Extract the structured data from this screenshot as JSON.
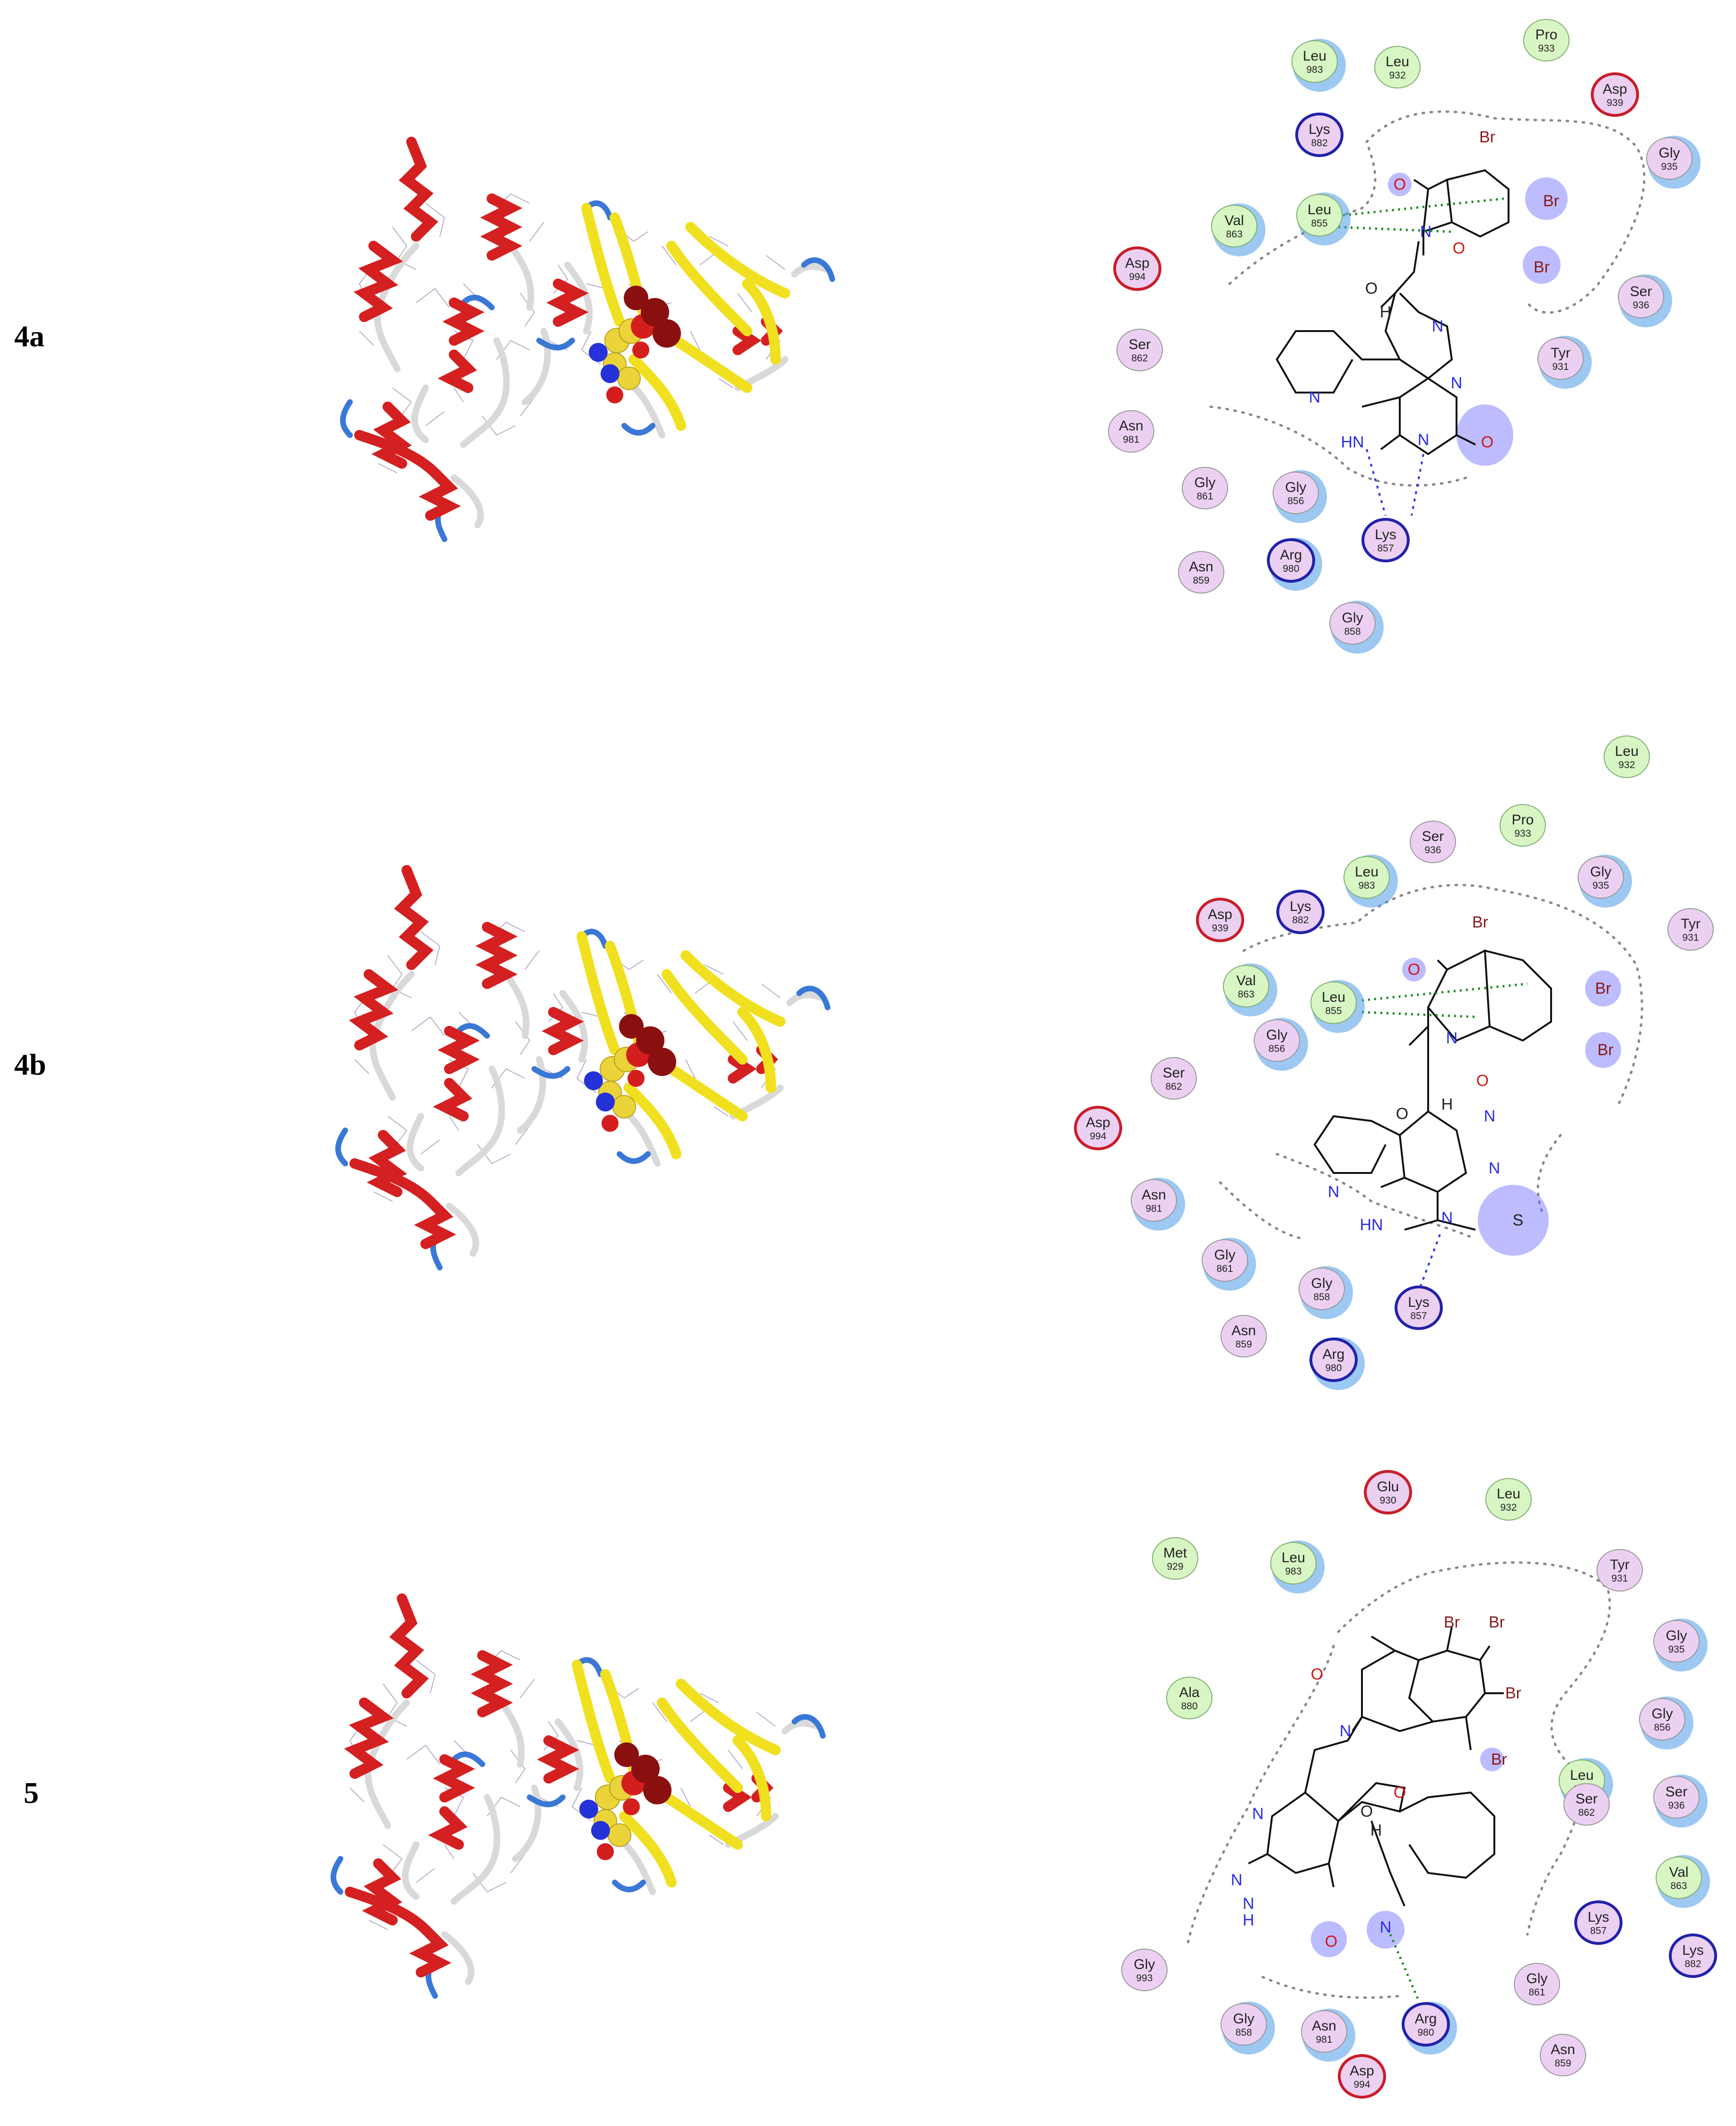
{
  "colors": {
    "helix": "#d42020",
    "strand": "#f0e020",
    "coil_white": "#d8d8d8",
    "coil_blue": "#3a78d6",
    "sphere_carbon": "#ead43a",
    "sphere_nitrogen": "#2432d8",
    "sphere_oxygen": "#d41e1e",
    "sphere_bromine": "#8a1010",
    "hydrophobic_fill": "#d8f5c4",
    "polar_fill": "#ecd0f2",
    "acidic_ring": "#c81e2a",
    "basic_ring": "#2222a8",
    "exposure_halo": "#4a9ae8",
    "hbond_backbone": "#2a3ae0",
    "arene_h": "#1f8a1f",
    "ligand_exposure": "#6a6aff",
    "bromine_text": "#8a1a1a",
    "nitrogen_text": "#2a2ae0",
    "oxygen_text": "#d01818"
  },
  "panels": [
    {
      "label": "4a",
      "residues": [
        {
          "name": "Leu",
          "num": "983",
          "type": "hydrophobic",
          "halo": true
        },
        {
          "name": "Leu",
          "num": "932",
          "type": "hydrophobic",
          "halo": false
        },
        {
          "name": "Pro",
          "num": "933",
          "type": "hydrophobic",
          "halo": false
        },
        {
          "name": "Asp",
          "num": "939",
          "type": "acidic",
          "halo": false
        },
        {
          "name": "Lys",
          "num": "882",
          "type": "basic",
          "halo": false
        },
        {
          "name": "Gly",
          "num": "935",
          "type": "polar",
          "halo": true
        },
        {
          "name": "Val",
          "num": "863",
          "type": "hydrophobic",
          "halo": true
        },
        {
          "name": "Leu",
          "num": "855",
          "type": "hydrophobic",
          "halo": true
        },
        {
          "name": "Asp",
          "num": "994",
          "type": "acidic",
          "halo": false
        },
        {
          "name": "Ser",
          "num": "936",
          "type": "polar",
          "halo": true
        },
        {
          "name": "Ser",
          "num": "862",
          "type": "polar",
          "halo": false
        },
        {
          "name": "Tyr",
          "num": "931",
          "type": "polar",
          "halo": true
        },
        {
          "name": "Asn",
          "num": "981",
          "type": "polar",
          "halo": false
        },
        {
          "name": "Gly",
          "num": "861",
          "type": "polar",
          "halo": false
        },
        {
          "name": "Gly",
          "num": "856",
          "type": "polar",
          "halo": true
        },
        {
          "name": "Lys",
          "num": "857",
          "type": "basic",
          "halo": false
        },
        {
          "name": "Arg",
          "num": "980",
          "type": "basic",
          "halo": true
        },
        {
          "name": "Asn",
          "num": "859",
          "type": "polar",
          "halo": false
        },
        {
          "name": "Gly",
          "num": "858",
          "type": "polar",
          "halo": true
        }
      ]
    },
    {
      "label": "4b",
      "residues": [
        {
          "name": "Leu",
          "num": "932",
          "type": "hydrophobic",
          "halo": false
        },
        {
          "name": "Pro",
          "num": "933",
          "type": "hydrophobic",
          "halo": false
        },
        {
          "name": "Ser",
          "num": "936",
          "type": "polar",
          "halo": false
        },
        {
          "name": "Leu",
          "num": "983",
          "type": "hydrophobic",
          "halo": true
        },
        {
          "name": "Gly",
          "num": "935",
          "type": "polar",
          "halo": true
        },
        {
          "name": "Asp",
          "num": "939",
          "type": "acidic",
          "halo": false
        },
        {
          "name": "Lys",
          "num": "882",
          "type": "basic",
          "halo": false
        },
        {
          "name": "Tyr",
          "num": "931",
          "type": "polar",
          "halo": false
        },
        {
          "name": "Val",
          "num": "863",
          "type": "hydrophobic",
          "halo": true
        },
        {
          "name": "Leu",
          "num": "855",
          "type": "hydrophobic",
          "halo": true
        },
        {
          "name": "Gly",
          "num": "856",
          "type": "polar",
          "halo": true
        },
        {
          "name": "Ser",
          "num": "862",
          "type": "polar",
          "halo": false
        },
        {
          "name": "Asp",
          "num": "994",
          "type": "acidic",
          "halo": false
        },
        {
          "name": "Asn",
          "num": "981",
          "type": "polar",
          "halo": true
        },
        {
          "name": "Gly",
          "num": "861",
          "type": "polar",
          "halo": true
        },
        {
          "name": "Gly",
          "num": "858",
          "type": "polar",
          "halo": true
        },
        {
          "name": "Lys",
          "num": "857",
          "type": "basic",
          "halo": false
        },
        {
          "name": "Asn",
          "num": "859",
          "type": "polar",
          "halo": false
        },
        {
          "name": "Arg",
          "num": "980",
          "type": "basic",
          "halo": true
        }
      ]
    },
    {
      "label": "5",
      "residues": [
        {
          "name": "Glu",
          "num": "930",
          "type": "acidic",
          "halo": false
        },
        {
          "name": "Leu",
          "num": "932",
          "type": "hydrophobic",
          "halo": false
        },
        {
          "name": "Met",
          "num": "929",
          "type": "hydrophobic",
          "halo": false
        },
        {
          "name": "Leu",
          "num": "983",
          "type": "hydrophobic",
          "halo": true
        },
        {
          "name": "Tyr",
          "num": "931",
          "type": "polar",
          "halo": false
        },
        {
          "name": "Gly",
          "num": "935",
          "type": "polar",
          "halo": true
        },
        {
          "name": "Ala",
          "num": "880",
          "type": "hydrophobic",
          "halo": false
        },
        {
          "name": "Gly",
          "num": "856",
          "type": "polar",
          "halo": true
        },
        {
          "name": "Leu",
          "num": "855",
          "type": "hydrophobic",
          "halo": true
        },
        {
          "name": "Ser",
          "num": "936",
          "type": "polar",
          "halo": true
        },
        {
          "name": "Ser",
          "num": "862",
          "type": "polar",
          "halo": false
        },
        {
          "name": "Val",
          "num": "863",
          "type": "hydrophobic",
          "halo": true
        },
        {
          "name": "Lys",
          "num": "857",
          "type": "basic",
          "halo": false
        },
        {
          "name": "Lys",
          "num": "882",
          "type": "basic",
          "halo": false
        },
        {
          "name": "Gly",
          "num": "993",
          "type": "polar",
          "halo": false
        },
        {
          "name": "Gly",
          "num": "861",
          "type": "polar",
          "halo": false
        },
        {
          "name": "Gly",
          "num": "858",
          "type": "polar",
          "halo": true
        },
        {
          "name": "Asn",
          "num": "981",
          "type": "polar",
          "halo": true
        },
        {
          "name": "Arg",
          "num": "980",
          "type": "basic",
          "halo": true
        },
        {
          "name": "Asn",
          "num": "859",
          "type": "polar",
          "halo": false
        },
        {
          "name": "Asp",
          "num": "994",
          "type": "acidic",
          "halo": false
        }
      ]
    }
  ],
  "atoms": {
    "bromine": "Br",
    "oxygen": "O",
    "nitrogen": "N",
    "hydrogen": "H",
    "imine": "HN",
    "imine_4b": "HN",
    "sulfur": "S",
    "nitrile": "N"
  }
}
